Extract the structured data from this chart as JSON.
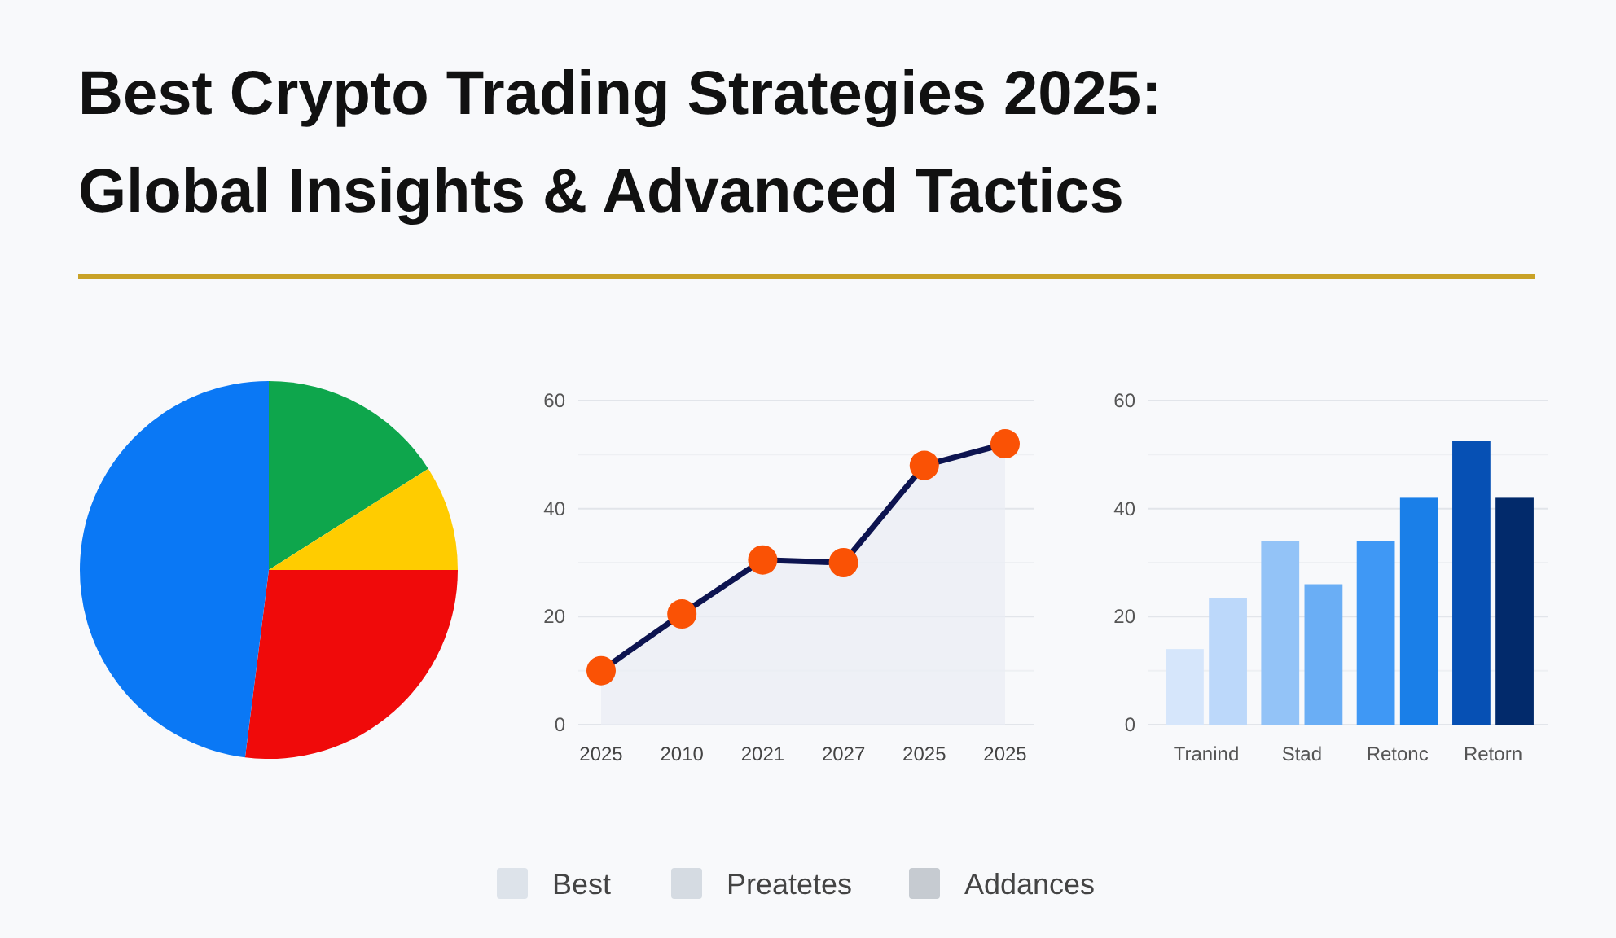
{
  "chart_data": [
    {
      "type": "pie",
      "title": "Best Crypto Trading Strategies 2025:\nGlobal Insights & Advanced Tactics",
      "categories": [
        null,
        null,
        null,
        null
      ],
      "values": [
        16,
        9,
        27,
        48
      ],
      "colors": [
        "#0ea64c",
        "#ffcc00",
        "#f00a0a",
        "#0a78f5"
      ]
    },
    {
      "type": "area",
      "categories": [
        "2025",
        "2010",
        "2021",
        "2027",
        "2025",
        "2025"
      ],
      "series": [
        {
          "color": "#0d1450",
          "colors": [
            "#fa5205",
            "#fa5205",
            "#fa5205",
            "#fa5205",
            "#fa5205",
            "#fa5205"
          ],
          "values": [
            10,
            20.5,
            30.5,
            30,
            48,
            52
          ]
        }
      ],
      "ylim": [
        0,
        60
      ],
      "yticks": [
        0,
        {
          "value": 10,
          "label": null
        },
        20,
        {
          "value": 30,
          "label": null
        },
        40,
        {
          "value": 50,
          "label": null
        },
        60
      ],
      "grid": "y",
      "marker": "circle"
    },
    {
      "type": "bar",
      "categories": [
        "Tranind",
        "Stad",
        "Retonc",
        "Retorn"
      ],
      "series": [
        {
          "colors": [
            "#d6e6fb",
            "#93c3f7",
            "#3f98f5",
            "#0650b4"
          ],
          "values": [
            14,
            34,
            34,
            52.5
          ]
        },
        {
          "colors": [
            "#bcd8fa",
            "#6aaef5",
            "#1a7fe8",
            "#022a6b"
          ],
          "values": [
            23.5,
            26,
            42,
            42
          ]
        }
      ],
      "ylim": [
        0,
        60
      ],
      "yticks": [
        0,
        {
          "value": 10,
          "label": null
        },
        20,
        {
          "value": 30,
          "label": null
        },
        40,
        {
          "value": 50,
          "label": null
        },
        60
      ],
      "grid": "y"
    },
    {
      "type": "other",
      "categories": [
        "Best",
        "Preatetes",
        "Addances"
      ],
      "colors": [
        "#dde3ea",
        "#d5dbe2",
        "#c6cbd1"
      ]
    }
  ]
}
